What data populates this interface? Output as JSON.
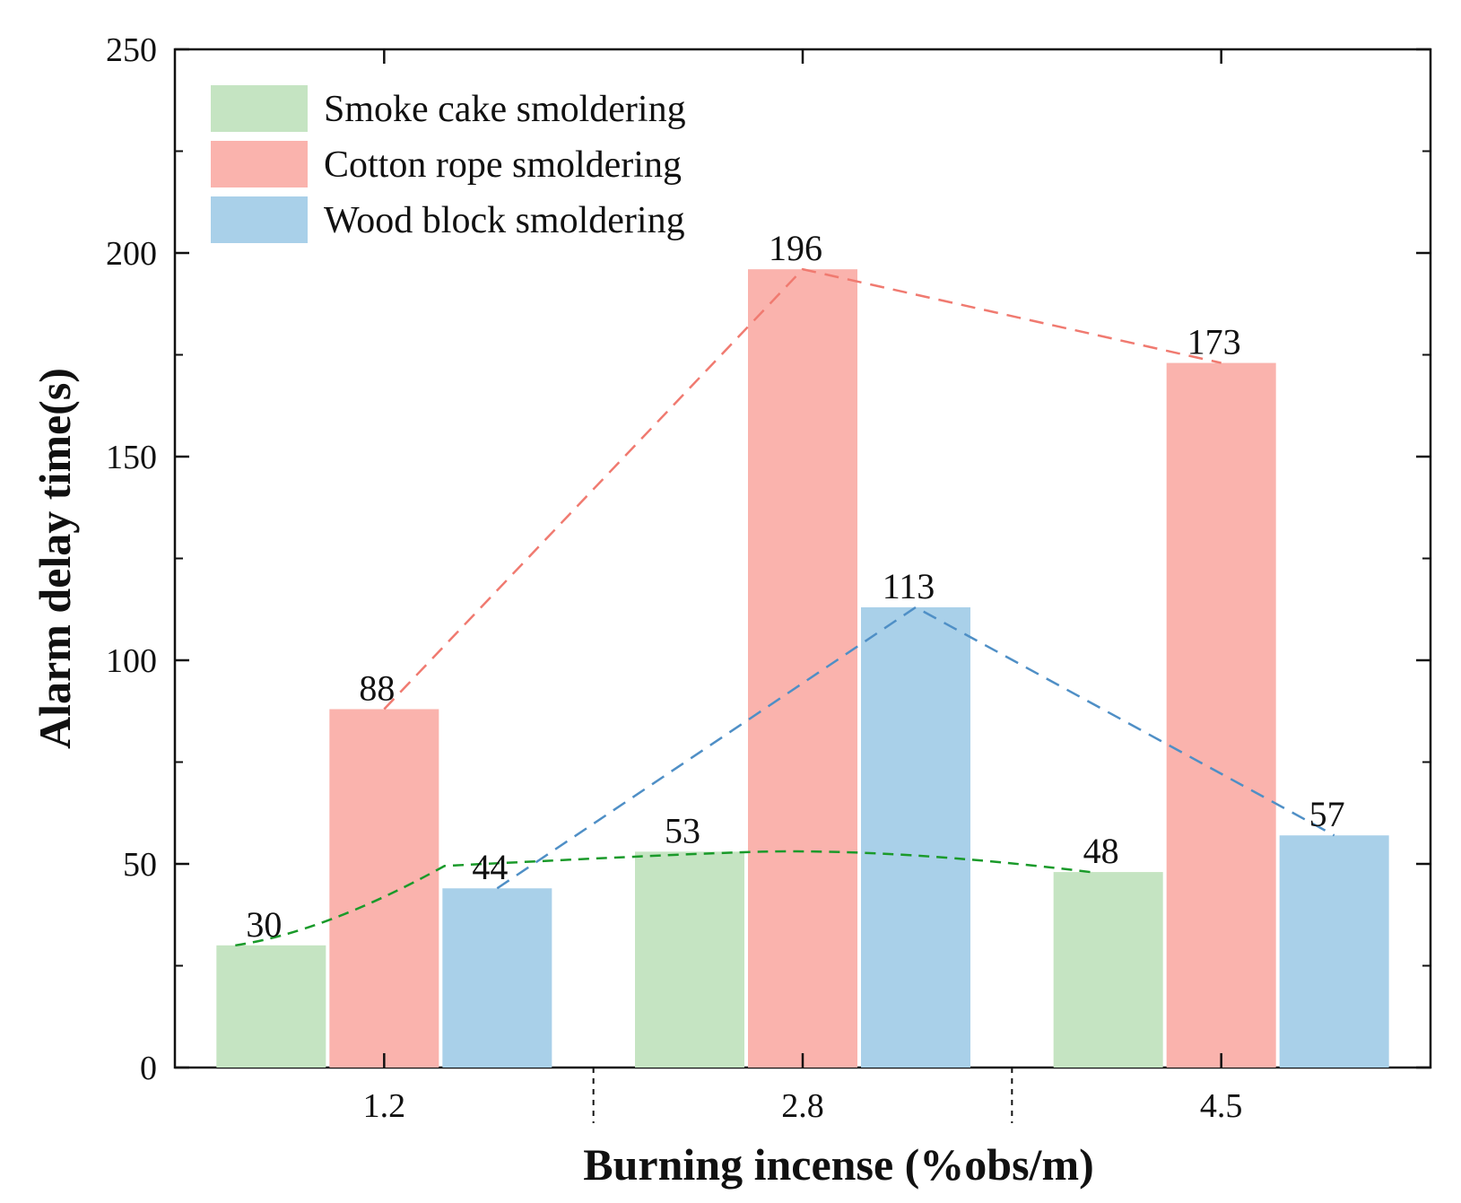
{
  "chart_data": {
    "type": "bar",
    "title": "",
    "xlabel": "Burning incense (%obs/m)",
    "ylabel": "Alarm delay time(s)",
    "ylim": [
      0,
      250
    ],
    "yticks": [
      0,
      50,
      100,
      150,
      200,
      250
    ],
    "categories": [
      "1.2",
      "2.8",
      "4.5"
    ],
    "series": [
      {
        "name": "Smoke cake smoldering",
        "color": "#c5e4c2",
        "line_color": "#1a9a2a",
        "values": [
          30,
          53,
          48
        ]
      },
      {
        "name": "Cotton rope smoldering",
        "color": "#fab3ad",
        "line_color": "#f07a70",
        "values": [
          88,
          196,
          173
        ]
      },
      {
        "name": "Wood block smoldering",
        "color": "#a9d0e9",
        "line_color": "#4f8fc6",
        "values": [
          44,
          113,
          57
        ]
      }
    ],
    "legend_position": "top-left",
    "trend_lines": "dashed lines connecting bar tops of each series"
  }
}
